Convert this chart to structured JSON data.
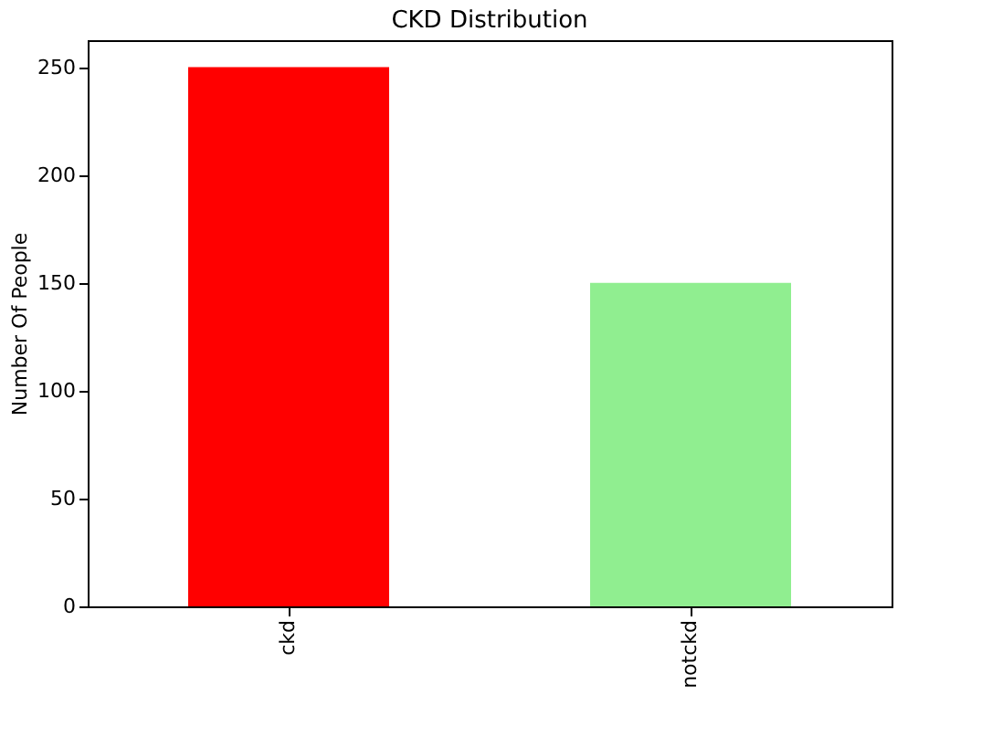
{
  "chart_data": {
    "type": "bar",
    "title": "CKD Distribution",
    "ylabel": "Number Of People",
    "categories": [
      "ckd",
      "notckd"
    ],
    "values": [
      250,
      150
    ],
    "colors": [
      "#ff0000",
      "#90ee90"
    ],
    "ylim": [
      0,
      262.5
    ],
    "yticks": [
      0,
      50,
      100,
      150,
      200,
      250
    ],
    "grid": false
  }
}
